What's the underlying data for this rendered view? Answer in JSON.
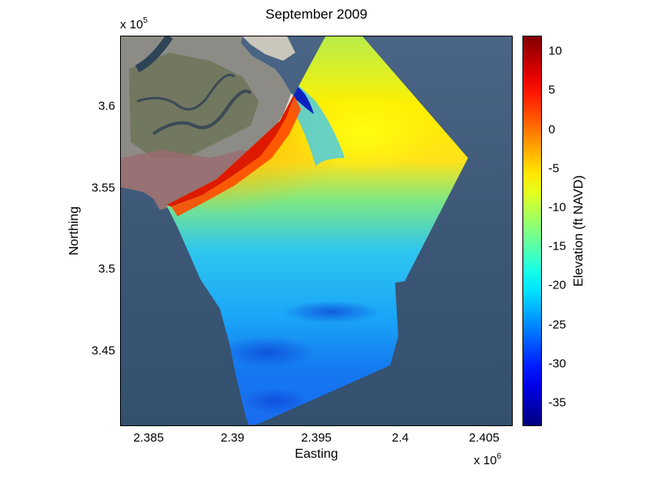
{
  "title": "September 2009",
  "map": {
    "xlabel": "Easting",
    "ylabel": "Northing",
    "x_exponent_base": "x 10",
    "x_exponent_power": "6",
    "y_exponent_base": "x 10",
    "y_exponent_power": "5",
    "x_ticks": [
      "2.385",
      "2.39",
      "2.395",
      "2.4",
      "2.405"
    ],
    "y_ticks": [
      "3.6",
      "3.55",
      "3.5",
      "3.45"
    ],
    "x_range": [
      2.3833,
      2.4067
    ],
    "y_range": [
      3.404,
      3.643
    ],
    "x_tick_values": [
      2.385,
      2.39,
      2.395,
      2.4,
      2.405
    ],
    "y_tick_values": [
      3.6,
      3.55,
      3.5,
      3.45
    ],
    "colors": {
      "water": "#3d5a78",
      "land": "#8c8a86",
      "marsh": "#5f6a50",
      "beach": "#d9d2c0",
      "urban": "#9c5660"
    }
  },
  "colorbar": {
    "label": "Elevation (ft NAVD)",
    "range": [
      -38,
      12
    ],
    "ticks": [
      "10",
      "5",
      "0",
      "-5",
      "-10",
      "-15",
      "-20",
      "-25",
      "-30",
      "-35"
    ],
    "tick_values": [
      10,
      5,
      0,
      -5,
      -10,
      -15,
      -20,
      -25,
      -30,
      -35
    ],
    "colormap": "jet"
  }
}
